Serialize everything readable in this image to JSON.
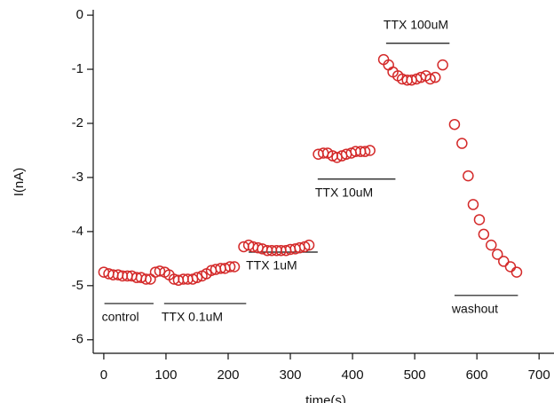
{
  "chart_data": {
    "type": "scatter",
    "xlabel": "time(s)",
    "ylabel": "I(nA)",
    "color": "#d42a2a",
    "x": [
      0,
      8,
      15,
      23,
      30,
      38,
      45,
      53,
      60,
      68,
      75,
      83,
      90,
      98,
      105,
      113,
      120,
      128,
      135,
      143,
      150,
      158,
      165,
      173,
      180,
      188,
      195,
      203,
      210,
      225,
      233,
      240,
      248,
      255,
      263,
      270,
      278,
      285,
      293,
      300,
      308,
      315,
      323,
      330,
      345,
      353,
      360,
      368,
      375,
      383,
      390,
      398,
      405,
      413,
      420,
      428,
      450,
      458,
      465,
      473,
      480,
      488,
      495,
      503,
      510,
      518,
      525,
      533,
      545,
      564,
      576,
      586,
      594,
      604,
      611,
      623,
      633,
      643,
      654,
      664
    ],
    "values": [
      -4.75,
      -4.78,
      -4.8,
      -4.8,
      -4.82,
      -4.82,
      -4.82,
      -4.85,
      -4.85,
      -4.88,
      -4.88,
      -4.75,
      -4.73,
      -4.75,
      -4.8,
      -4.88,
      -4.9,
      -4.88,
      -4.88,
      -4.88,
      -4.85,
      -4.82,
      -4.78,
      -4.72,
      -4.7,
      -4.68,
      -4.68,
      -4.65,
      -4.65,
      -4.28,
      -4.25,
      -4.28,
      -4.3,
      -4.32,
      -4.35,
      -4.35,
      -4.35,
      -4.35,
      -4.35,
      -4.33,
      -4.32,
      -4.3,
      -4.28,
      -4.25,
      -2.57,
      -2.55,
      -2.55,
      -2.6,
      -2.63,
      -2.6,
      -2.57,
      -2.55,
      -2.52,
      -2.52,
      -2.52,
      -2.5,
      -0.82,
      -0.92,
      -1.05,
      -1.12,
      -1.18,
      -1.2,
      -1.2,
      -1.18,
      -1.15,
      -1.12,
      -1.18,
      -1.15,
      -0.92,
      -2.02,
      -2.37,
      -2.97,
      -3.5,
      -3.78,
      -4.05,
      -4.25,
      -4.42,
      -4.55,
      -4.65,
      -4.75
    ],
    "xlim": [
      -17,
      724
    ],
    "ylim": [
      -6.25,
      0.1
    ],
    "xticks": [
      0,
      100,
      200,
      300,
      400,
      500,
      600,
      700
    ],
    "yticks": [
      0,
      -1,
      -2,
      -3,
      -4,
      -5,
      -6
    ],
    "annotations": [
      {
        "label": "control",
        "x": [
          1,
          80
        ],
        "y": -5.33,
        "side": "below"
      },
      {
        "label": "TTX 0.1uM",
        "x": [
          97,
          229
        ],
        "y": -5.33,
        "side": "below"
      },
      {
        "label": "TTX 1uM",
        "x": [
          233,
          344
        ],
        "y": -4.38,
        "side": "below"
      },
      {
        "label": "TTX 10uM",
        "x": [
          344,
          469
        ],
        "y": -3.03,
        "side": "below"
      },
      {
        "label": "TTX 100uM",
        "x": [
          454,
          556
        ],
        "y": -0.52,
        "side": "above"
      },
      {
        "label": "washout",
        "x": [
          564,
          666
        ],
        "y": -5.18,
        "side": "below"
      }
    ]
  }
}
